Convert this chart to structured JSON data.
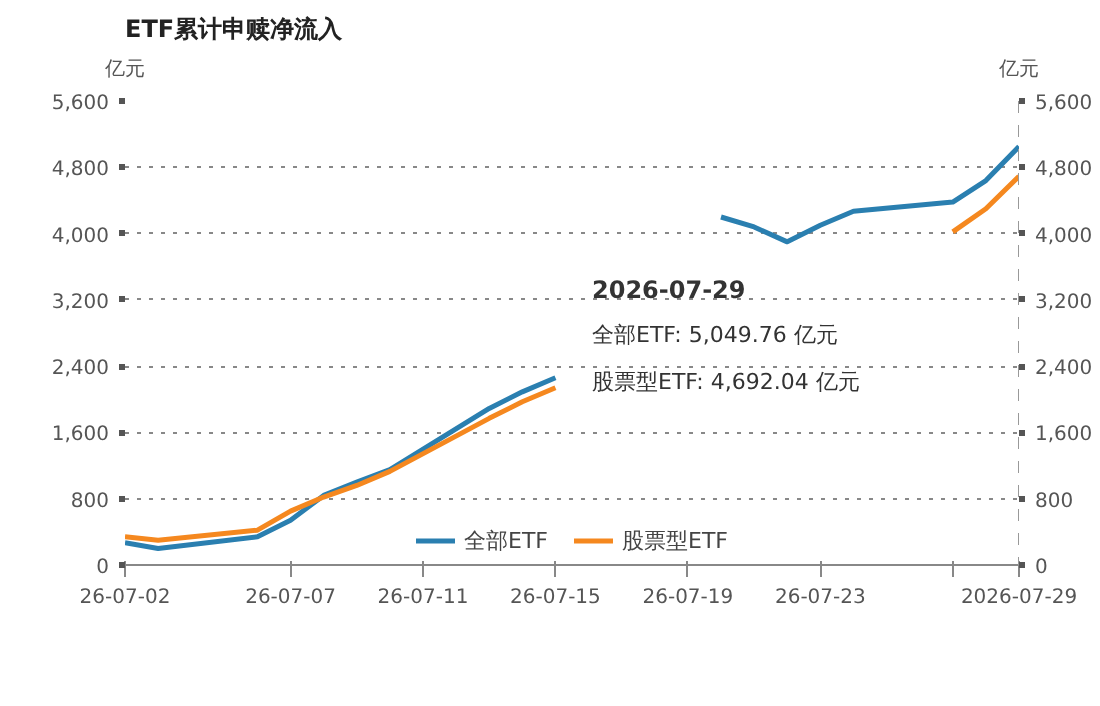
{
  "chart_data": {
    "type": "line",
    "title": "ETF累计申赎净流入",
    "ylabel": "亿元",
    "y2label": "亿元",
    "x": [
      "2026-07-02",
      "2026-07-03",
      "2026-07-06",
      "2026-07-07",
      "2026-07-08",
      "2026-07-09",
      "2026-07-10",
      "2026-07-13",
      "2026-07-14",
      "2026-07-15",
      "2026-07-16",
      "2026-07-17",
      "2026-07-20",
      "2026-07-21",
      "2026-07-22",
      "2026-07-23",
      "2026-07-24",
      "2026-07-27",
      "2026-07-28",
      "2026-07-29"
    ],
    "series": [
      {
        "name": "全部ETF",
        "color": "#2a7fb0",
        "values": [
          270,
          200,
          340,
          540,
          840,
          1000,
          1150,
          1890,
          2090,
          2260,
          null,
          null,
          4200,
          4080,
          3900,
          4100,
          4270,
          4380,
          4640,
          5049.76
        ]
      },
      {
        "name": "股票型ETF",
        "color": "#f5881f",
        "values": [
          340,
          300,
          420,
          650,
          820,
          960,
          1130,
          1770,
          1970,
          2140,
          null,
          null,
          null,
          null,
          null,
          null,
          null,
          4020,
          4300,
          4692.04
        ]
      }
    ],
    "xlim": [
      "2026-07-02",
      "2026-07-29"
    ],
    "xticks": [
      {
        "value": "2026-07-02",
        "label": "26-07-02"
      },
      {
        "value": "2026-07-07",
        "label": "26-07-07"
      },
      {
        "value": "2026-07-11",
        "label": "26-07-11"
      },
      {
        "value": "2026-07-15",
        "label": "26-07-15"
      },
      {
        "value": "2026-07-19",
        "label": "26-07-19"
      },
      {
        "value": "2026-07-23",
        "label": "26-07-23"
      },
      {
        "value": "2026-07-27",
        "label": null
      }
    ],
    "ylim": [
      0,
      5600
    ],
    "yticks": [
      0,
      800,
      {
        "value": 1600,
        "label": "1,600"
      },
      {
        "value": 2400,
        "label": "2,400"
      },
      {
        "value": 3200,
        "label": "3,200"
      },
      {
        "value": 4000,
        "label": "4,000"
      },
      {
        "value": 4800,
        "label": "4,800"
      },
      {
        "value": 5600,
        "label": "5,600"
      }
    ],
    "y2lim": [
      0,
      5600
    ],
    "y2ticks": [
      0,
      800,
      {
        "value": 1600,
        "label": "1,600"
      },
      {
        "value": 2400,
        "label": "2,400"
      },
      {
        "value": 3200,
        "label": "3,200"
      },
      {
        "value": 4000,
        "label": "4,000"
      },
      {
        "value": 4800,
        "label": "4,800"
      },
      {
        "value": 5600,
        "label": "5,600"
      }
    ],
    "ref_lines": [
      {
        "axis": "x",
        "value": "2026-07-29",
        "label": "2026-07-29",
        "color": "#999999",
        "line_style": "dashed"
      }
    ],
    "annotations": [
      "2026-07-29",
      "全部ETF: 5,049.76 亿元",
      "股票型ETF: 4,692.04 亿元"
    ],
    "grid": "y",
    "legend": "bottom",
    "marker": "none",
    "line_style": "solid"
  }
}
